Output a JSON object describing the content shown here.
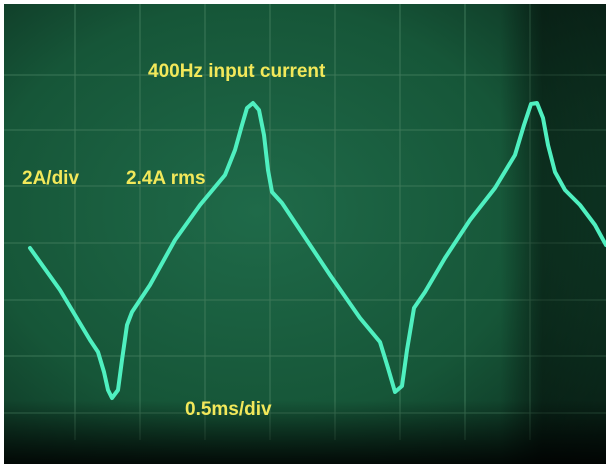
{
  "annotations": {
    "title": "400Hz input current",
    "vertical_scale": "2A/div",
    "rms": "2.4A rms",
    "timebase": "0.5ms/div"
  }
}
